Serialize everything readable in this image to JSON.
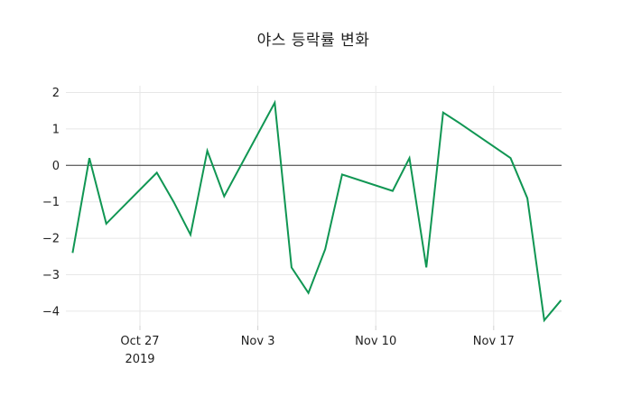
{
  "title": "야스 등락률 변화",
  "colors": {
    "line": "#109653",
    "grid": "#e7e7e7",
    "tick": "#cfcfcf",
    "zero_line": "#3a3a3a",
    "text": "#1f1f1f",
    "background": "#ffffff"
  },
  "chart_data": {
    "type": "line",
    "title": "야스 등락률 변화",
    "xlabel": "",
    "ylabel": "",
    "grid": true,
    "legend": false,
    "zero_line": true,
    "line_color": "#109653",
    "x": [
      "2019-10-23",
      "2019-10-24",
      "2019-10-25",
      "2019-10-28",
      "2019-10-29",
      "2019-10-30",
      "2019-10-31",
      "2019-11-01",
      "2019-11-04",
      "2019-11-05",
      "2019-11-06",
      "2019-11-07",
      "2019-11-08",
      "2019-11-11",
      "2019-11-12",
      "2019-11-13",
      "2019-11-14",
      "2019-11-15",
      "2019-11-18",
      "2019-11-19",
      "2019-11-20",
      "2019-11-21"
    ],
    "values": [
      -2.4,
      0.2,
      -1.6,
      -0.2,
      -1.0,
      -1.9,
      0.4,
      -0.85,
      1.72,
      -2.8,
      -3.5,
      -2.3,
      -0.25,
      -0.7,
      0.2,
      -2.8,
      1.45,
      1.15,
      0.2,
      -0.9,
      -4.25,
      -3.7
    ],
    "x_tick_labels": [
      {
        "date": "2019-10-27",
        "label": "Oct 27",
        "sublabel": "2019"
      },
      {
        "date": "2019-11-03",
        "label": "Nov 3",
        "sublabel": ""
      },
      {
        "date": "2019-11-10",
        "label": "Nov 10",
        "sublabel": ""
      },
      {
        "date": "2019-11-17",
        "label": "Nov 17",
        "sublabel": ""
      }
    ],
    "y_ticks": [
      {
        "value": 2,
        "label": "2"
      },
      {
        "value": 1,
        "label": "1"
      },
      {
        "value": 0,
        "label": "0"
      },
      {
        "value": -1,
        "label": "−1"
      },
      {
        "value": -2,
        "label": "−2"
      },
      {
        "value": -3,
        "label": "−3"
      },
      {
        "value": -4,
        "label": "−4"
      }
    ],
    "ylim": [
      -4.45,
      2.2
    ]
  }
}
